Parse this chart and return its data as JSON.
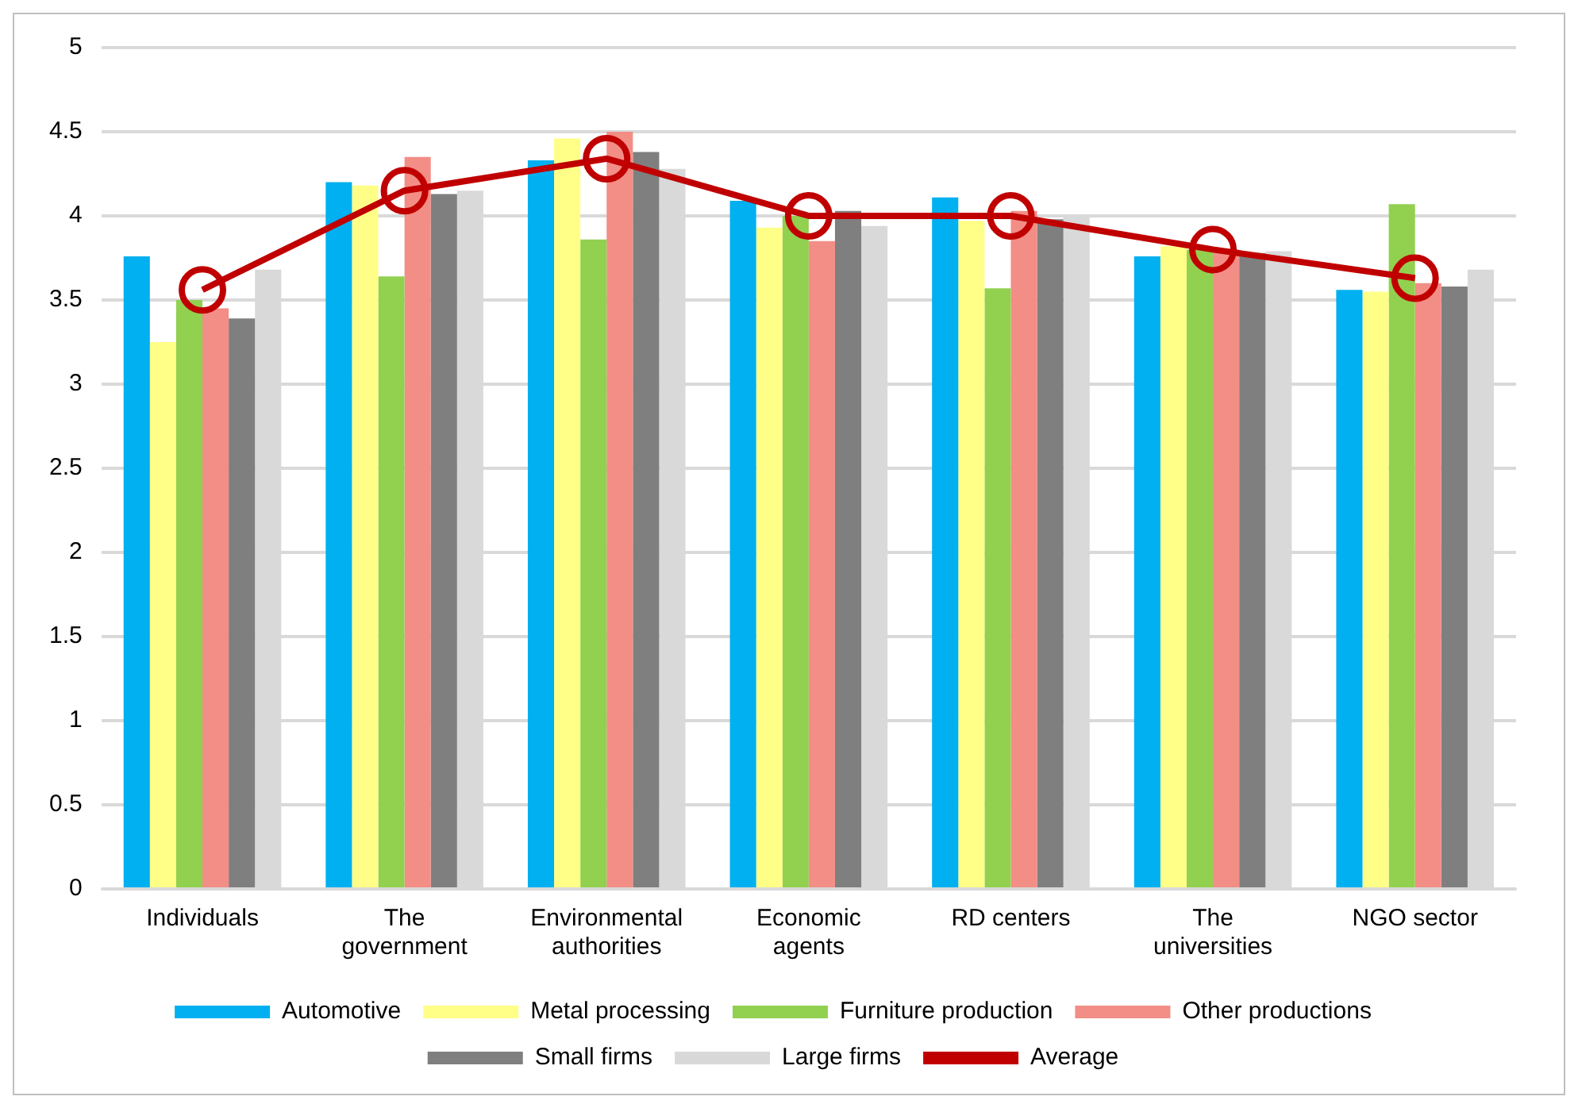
{
  "chart_data": {
    "type": "bar",
    "categories": [
      "Individuals",
      "The government",
      "Environmental authorities",
      "Economic agents",
      "RD centers",
      "The universities",
      "NGO sector"
    ],
    "series": [
      {
        "name": "Automotive",
        "color": "#00b0f0",
        "values": [
          3.76,
          4.2,
          4.33,
          4.09,
          4.11,
          3.76,
          3.56
        ]
      },
      {
        "name": "Metal processing",
        "color": "#ffff88",
        "values": [
          3.25,
          4.18,
          4.46,
          3.93,
          3.97,
          3.82,
          3.55
        ]
      },
      {
        "name": "Furniture production",
        "color": "#92d050",
        "values": [
          3.5,
          3.64,
          3.86,
          4.0,
          3.57,
          3.8,
          4.07
        ]
      },
      {
        "name": "Other productions",
        "color": "#f28e86",
        "values": [
          3.45,
          4.35,
          4.5,
          3.85,
          4.03,
          3.8,
          3.6
        ]
      },
      {
        "name": "Small firms",
        "color": "#7f7f7f",
        "values": [
          3.39,
          4.13,
          4.38,
          4.03,
          3.98,
          3.78,
          3.58
        ]
      },
      {
        "name": "Large firms",
        "color": "#d9d9d9",
        "values": [
          3.68,
          4.15,
          4.28,
          3.94,
          4.0,
          3.79,
          3.68
        ]
      },
      {
        "name": "Average",
        "type": "line",
        "color": "#c00000",
        "marker": "circle",
        "values": [
          3.56,
          4.15,
          4.34,
          4.0,
          4.0,
          3.8,
          3.63
        ]
      }
    ],
    "ylim": [
      0,
      5
    ],
    "yticks": [
      0,
      0.5,
      1,
      1.5,
      2,
      2.5,
      3,
      3.5,
      4,
      4.5,
      5
    ],
    "grid": "y",
    "legend": "bottom"
  }
}
